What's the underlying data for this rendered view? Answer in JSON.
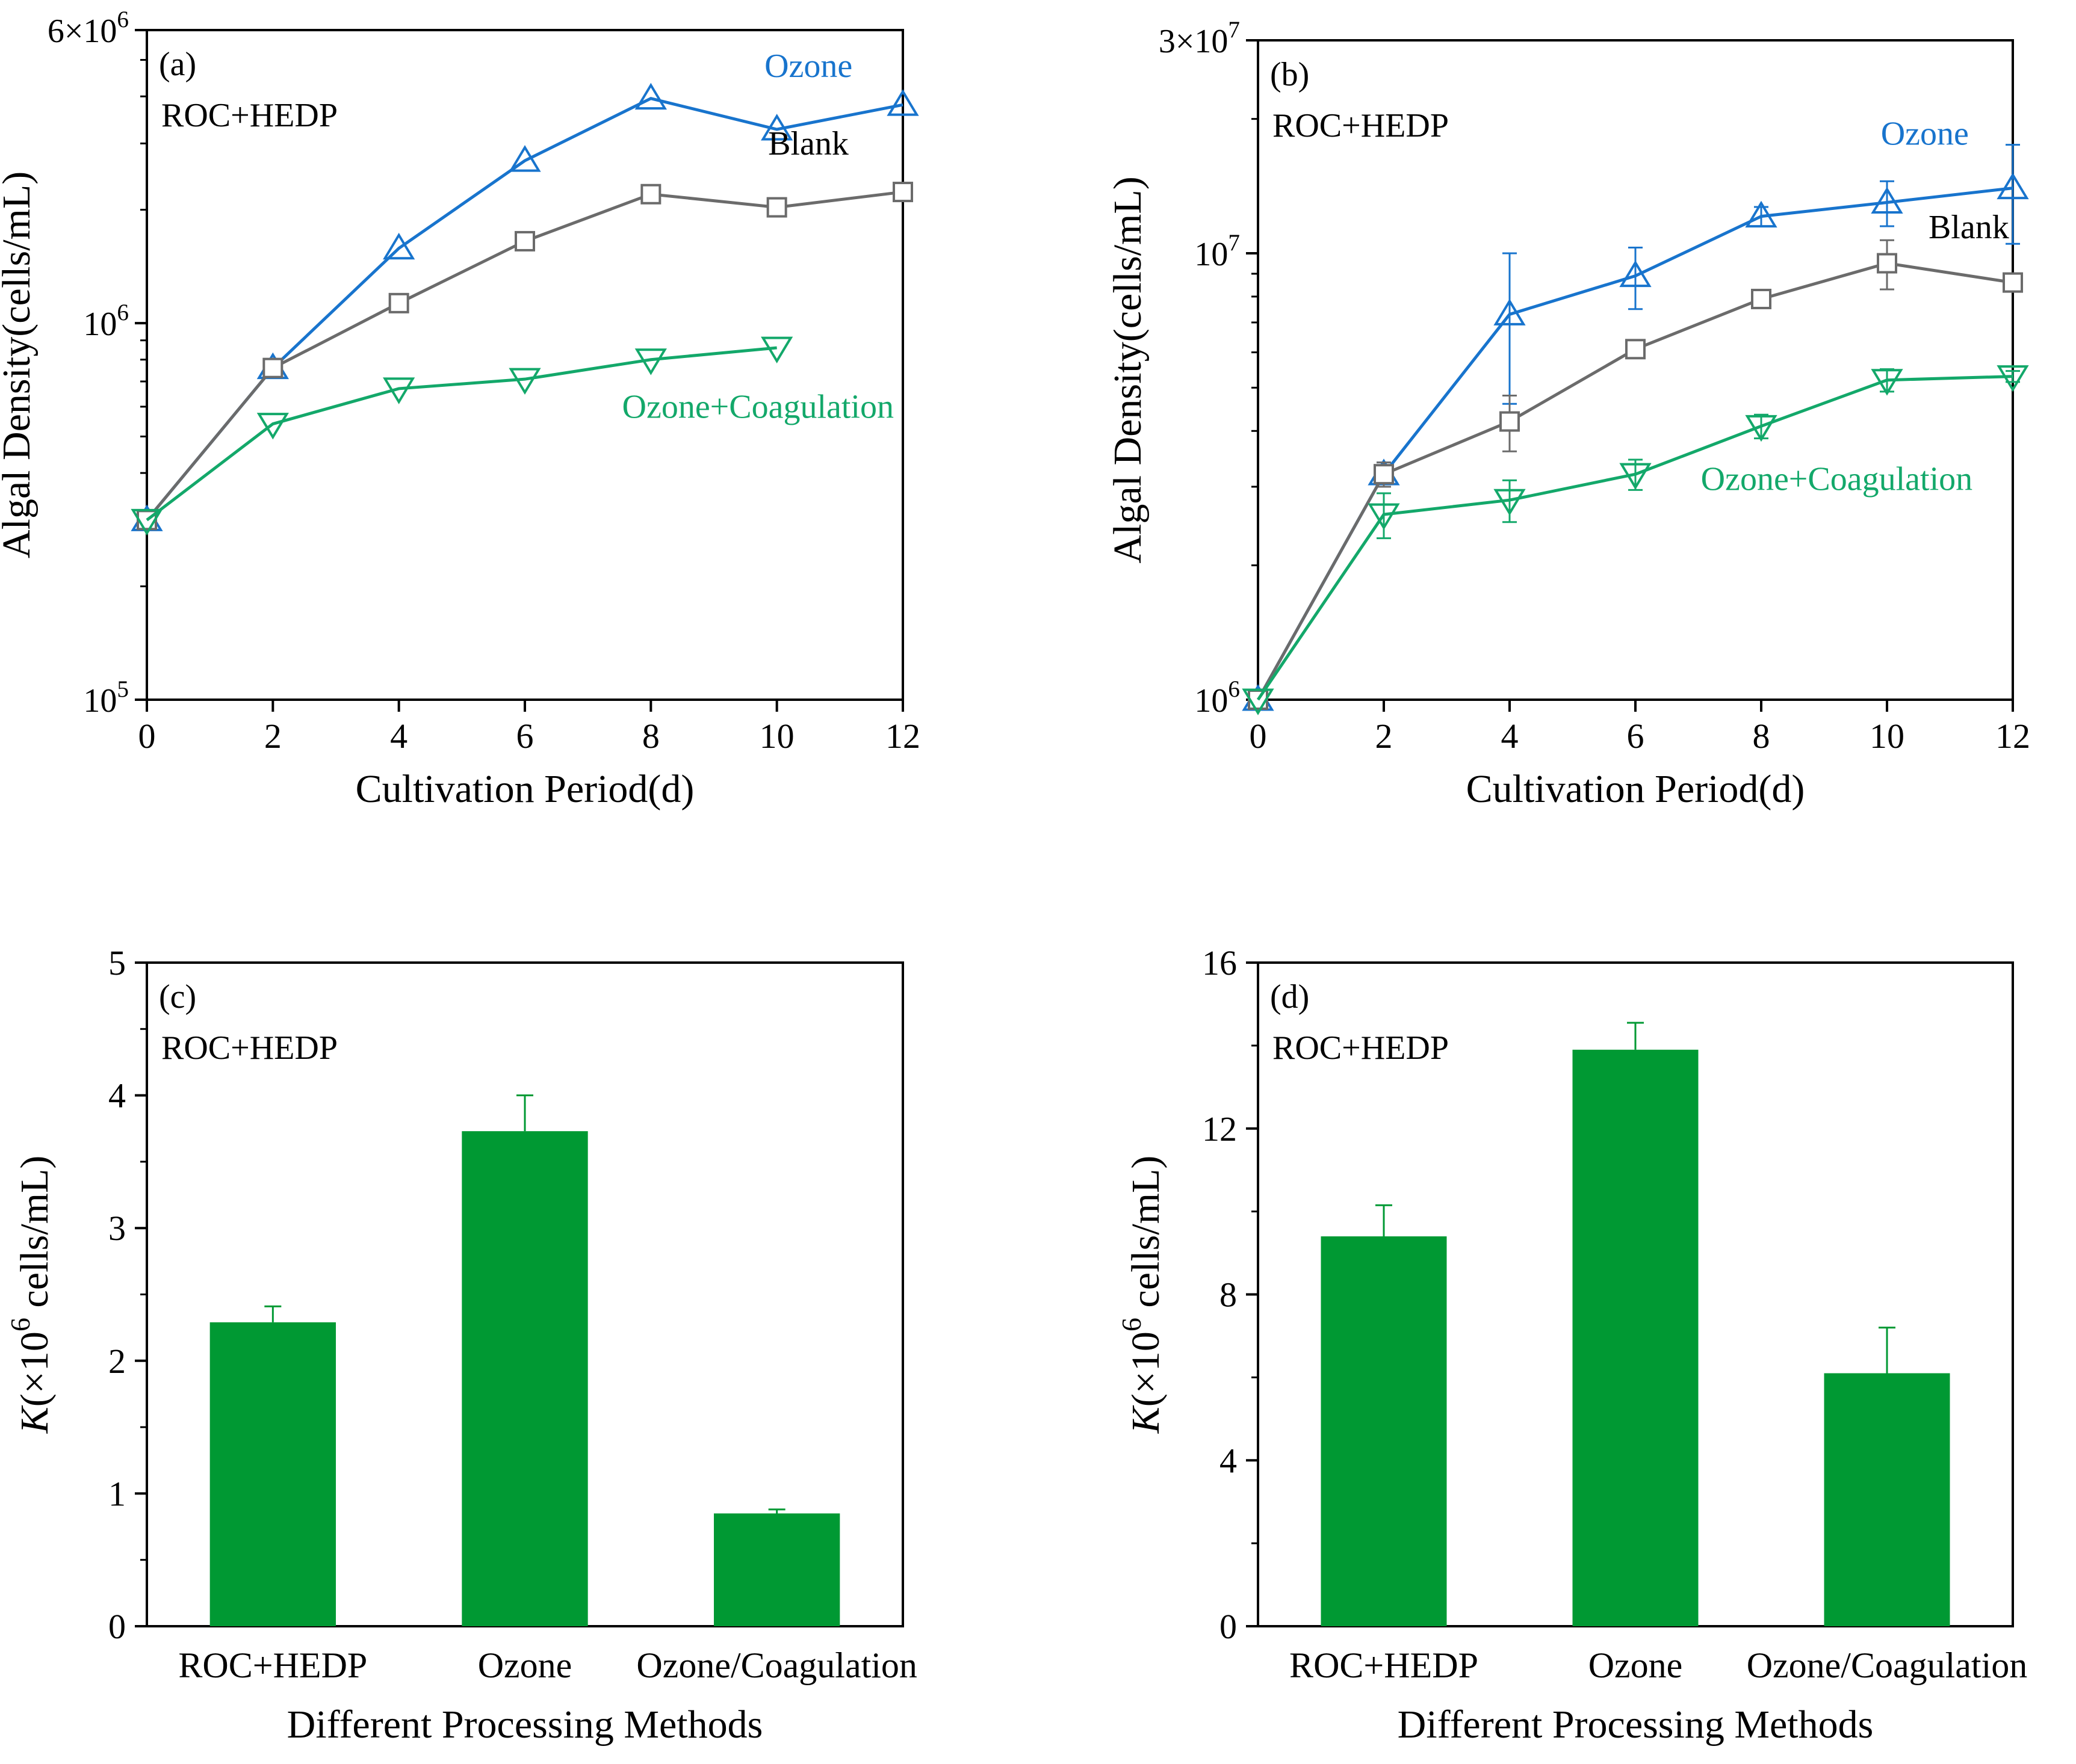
{
  "figure": {
    "colors": {
      "ozone": "#1874CD",
      "blank": "#6B6B6B",
      "ozone_coag": "#13A86A",
      "bar": "#009933"
    }
  },
  "chart_data": [
    {
      "id": "a",
      "type": "line",
      "panel_label": "(a)",
      "annotation": "ROC+HEDP",
      "xlabel": "Cultivation Period(d)",
      "ylabel": "Algal Density(cells/mL)",
      "yscale": "log",
      "xlim": [
        0,
        12
      ],
      "ylim": [
        100000,
        6000000
      ],
      "xticks": [
        0,
        2,
        4,
        6,
        8,
        10,
        12
      ],
      "yticks": [
        {
          "value": 100000,
          "base": "10",
          "exp": "5"
        },
        {
          "value": 1000000,
          "base": "10",
          "exp": "6"
        },
        {
          "value": 6000000,
          "base": "6×10",
          "exp": "6"
        }
      ],
      "series": [
        {
          "name": "Ozone",
          "color": "#1874CD",
          "marker": "triangle-up",
          "x": [
            0,
            2,
            4,
            6,
            8,
            10,
            12
          ],
          "y": [
            300000,
            760000,
            1580000,
            2700000,
            3950000,
            3270000,
            3800000
          ],
          "label_at": [
            11.2,
            4500000
          ],
          "label_anchor": "end"
        },
        {
          "name": "Blank",
          "color": "#6B6B6B",
          "marker": "square",
          "x": [
            0,
            2,
            4,
            6,
            8,
            10,
            12
          ],
          "y": [
            300000,
            760000,
            1130000,
            1650000,
            2200000,
            2030000,
            2230000
          ],
          "label_at": [
            10.5,
            2800000
          ],
          "label_anchor": "middle"
        },
        {
          "name": "Ozone+Coagulation",
          "color": "#13A86A",
          "marker": "triangle-down",
          "x": [
            0,
            2,
            4,
            6,
            8,
            10
          ],
          "y": [
            300000,
            540000,
            670000,
            710000,
            800000,
            860000
          ],
          "label_at": [
            9.7,
            560000
          ],
          "label_anchor": "middle"
        }
      ]
    },
    {
      "id": "b",
      "type": "line",
      "panel_label": "(b)",
      "annotation": "ROC+HEDP",
      "xlabel": "Cultivation Period(d)",
      "ylabel": "Algal Density(cells/mL)",
      "yscale": "log",
      "xlim": [
        0,
        12
      ],
      "ylim": [
        1000000,
        30000000
      ],
      "xticks": [
        0,
        2,
        4,
        6,
        8,
        10,
        12
      ],
      "yticks": [
        {
          "value": 1000000,
          "base": "10",
          "exp": "6"
        },
        {
          "value": 10000000,
          "base": "10",
          "exp": "7"
        },
        {
          "value": 30000000,
          "base": "3×10",
          "exp": "7"
        }
      ],
      "series": [
        {
          "name": "Ozone",
          "color": "#1874CD",
          "marker": "triangle-up",
          "x": [
            0,
            2,
            4,
            6,
            8,
            10,
            12
          ],
          "y": [
            1000000,
            3200000,
            7300000,
            8900000,
            12100000,
            13000000,
            14000000
          ],
          "err": [
            0,
            200000,
            2700000,
            1400000,
            600000,
            1500000,
            3500000
          ],
          "label_at": [
            11.3,
            17500000
          ],
          "label_anchor": "end"
        },
        {
          "name": "Blank",
          "color": "#6B6B6B",
          "marker": "square",
          "x": [
            0,
            2,
            4,
            6,
            8,
            10,
            12
          ],
          "y": [
            1000000,
            3200000,
            4200000,
            6100000,
            7900000,
            9500000,
            8600000
          ],
          "err": [
            0,
            200000,
            600000,
            0,
            0,
            1200000,
            0
          ],
          "label_at": [
            11.3,
            10800000
          ],
          "label_anchor": "middle"
        },
        {
          "name": "Ozone+Coagulation",
          "color": "#13A86A",
          "marker": "triangle-down",
          "x": [
            0,
            2,
            4,
            6,
            8,
            10,
            12
          ],
          "y": [
            1000000,
            2600000,
            2800000,
            3200000,
            4100000,
            5200000,
            5300000
          ],
          "err": [
            0,
            300000,
            300000,
            250000,
            250000,
            300000,
            150000
          ],
          "label_at": [
            9.2,
            2950000
          ],
          "label_anchor": "middle"
        }
      ]
    },
    {
      "id": "c",
      "type": "bar",
      "panel_label": "(c)",
      "annotation": "ROC+HEDP",
      "xlabel": "Different Processing Methods",
      "ylabel_italic": "K",
      "ylabel_pre": "(×10",
      "ylabel_exp": "6",
      "ylabel_post": " cells/mL)",
      "ylim": [
        0,
        5
      ],
      "yticks": [
        0,
        1,
        2,
        3,
        4,
        5
      ],
      "categories": [
        "ROC+HEDP",
        "Ozone",
        "Ozone/Coagulation"
      ],
      "values": [
        2.29,
        3.73,
        0.85
      ],
      "errors": [
        0.12,
        0.27,
        0.03
      ]
    },
    {
      "id": "d",
      "type": "bar",
      "panel_label": "(d)",
      "annotation": "ROC+HEDP",
      "xlabel": "Different Processing Methods",
      "ylabel_italic": "K",
      "ylabel_pre": "(×10",
      "ylabel_exp": "6",
      "ylabel_post": " cells/mL)",
      "ylim": [
        0,
        16
      ],
      "yticks": [
        0,
        4,
        8,
        12,
        16
      ],
      "categories": [
        "ROC+HEDP",
        "Ozone",
        "Ozone/Coagulation"
      ],
      "values": [
        9.4,
        13.9,
        6.1
      ],
      "errors": [
        0.75,
        0.65,
        1.1
      ]
    }
  ]
}
